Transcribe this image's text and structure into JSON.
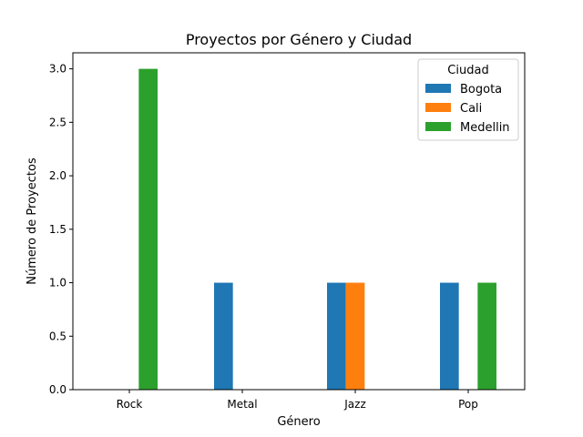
{
  "chart_data": {
    "type": "bar",
    "title": "Proyectos por Género y Ciudad",
    "xlabel": "Género",
    "ylabel": "Número de Proyectos",
    "categories": [
      "Rock",
      "Metal",
      "Jazz",
      "Pop"
    ],
    "series": [
      {
        "name": "Bogota",
        "color": "#1f77b4",
        "values": [
          0,
          1,
          1,
          1
        ]
      },
      {
        "name": "Cali",
        "color": "#ff7f0e",
        "values": [
          0,
          0,
          1,
          0
        ]
      },
      {
        "name": "Medellin",
        "color": "#2ca02c",
        "values": [
          3,
          0,
          0,
          1
        ]
      }
    ],
    "ylim": [
      0,
      3.15
    ],
    "yticks": [
      "0.0",
      "0.5",
      "1.0",
      "1.5",
      "2.0",
      "2.5",
      "3.0"
    ],
    "grid": false,
    "legend": {
      "title": "Ciudad",
      "placement": "top-right"
    }
  }
}
